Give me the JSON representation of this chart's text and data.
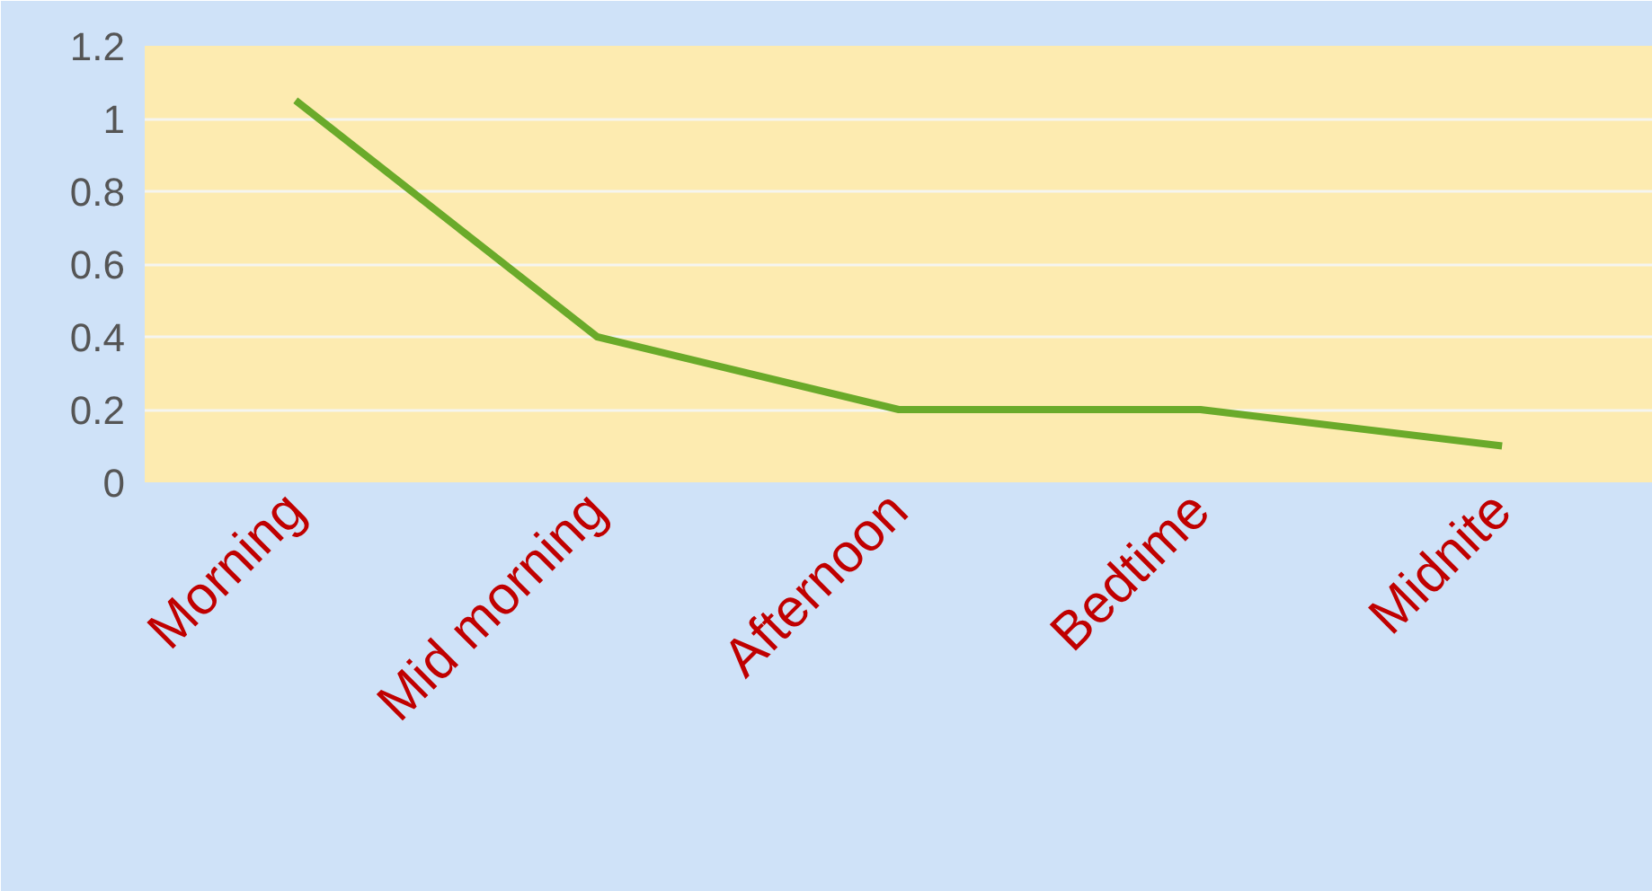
{
  "chart_data": {
    "type": "line",
    "categories": [
      "Morning",
      "Mid morning",
      "Afternoon",
      "Bedtime",
      "Midnite"
    ],
    "series": [
      {
        "color": "#6aaa2a",
        "values": [
          1.05,
          0.4,
          0.2,
          0.2,
          0.1
        ]
      }
    ],
    "ylim": [
      0,
      1.2
    ],
    "yticks": [
      0,
      {
        "value": 0.2,
        "label": "0.2"
      },
      {
        "value": 0.4,
        "label": "0.4"
      },
      {
        "value": 0.6,
        "label": "0.6"
      },
      {
        "value": 0.8,
        "label": "0.8"
      },
      1,
      {
        "value": 1.2,
        "label": "1.2"
      }
    ],
    "grid": "y",
    "marker": "none",
    "line_style": "solid"
  }
}
